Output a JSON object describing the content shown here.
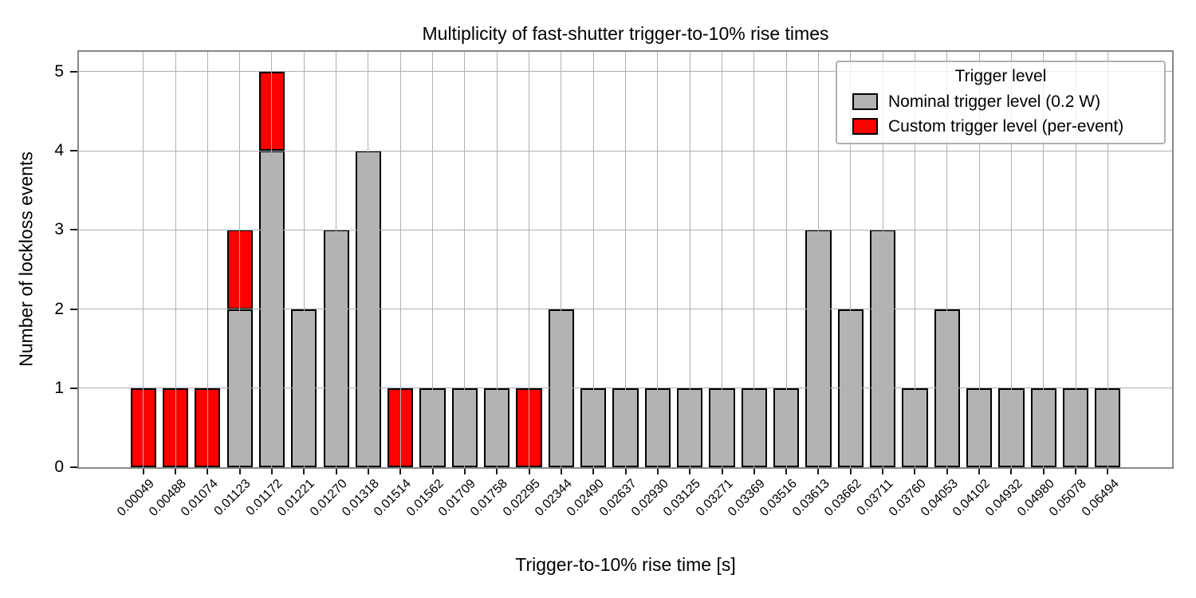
{
  "chart_data": {
    "type": "bar",
    "stacked": true,
    "title": "Multiplicity of fast-shutter trigger-to-10% rise times",
    "xlabel": "Trigger-to-10% rise time [s]",
    "ylabel": "Number of lockloss events",
    "categories": [
      "0.00049",
      "0.00488",
      "0.01074",
      "0.01123",
      "0.01172",
      "0.01221",
      "0.01270",
      "0.01318",
      "0.01514",
      "0.01562",
      "0.01709",
      "0.01758",
      "0.02295",
      "0.02344",
      "0.02490",
      "0.02637",
      "0.02930",
      "0.03125",
      "0.03271",
      "0.03369",
      "0.03516",
      "0.03613",
      "0.03662",
      "0.03711",
      "0.03760",
      "0.04053",
      "0.04102",
      "0.04932",
      "0.04980",
      "0.05078",
      "0.06494"
    ],
    "series": [
      {
        "name": "Nominal trigger level (0.2 W)",
        "color": "#b3b3b3",
        "values": [
          0,
          0,
          0,
          2,
          4,
          2,
          3,
          4,
          0,
          1,
          1,
          1,
          0,
          2,
          1,
          1,
          1,
          1,
          1,
          1,
          1,
          3,
          2,
          3,
          1,
          2,
          1,
          1,
          1,
          1,
          1
        ]
      },
      {
        "name": "Custom trigger level (per-event)",
        "color": "#ff0000",
        "values": [
          1,
          1,
          1,
          1,
          1,
          0,
          0,
          0,
          1,
          0,
          0,
          0,
          1,
          0,
          0,
          0,
          0,
          0,
          0,
          0,
          0,
          0,
          0,
          0,
          0,
          0,
          0,
          0,
          0,
          0,
          0
        ]
      }
    ],
    "legend_title": "Trigger level",
    "legend_position": "upper right",
    "yticks": [
      0,
      1,
      2,
      3,
      4,
      5
    ],
    "ylim": [
      0,
      5.25
    ],
    "xlim_units": [
      -2,
      32
    ],
    "bar_width": 0.8,
    "grid": true,
    "grid_above_bars": true,
    "colors": {
      "grid": "#b0b0b0",
      "spine": "#888888",
      "tick": "#1a1a1a",
      "bar_edge": "#000000",
      "text": "#000000",
      "background": "#ffffff"
    }
  }
}
